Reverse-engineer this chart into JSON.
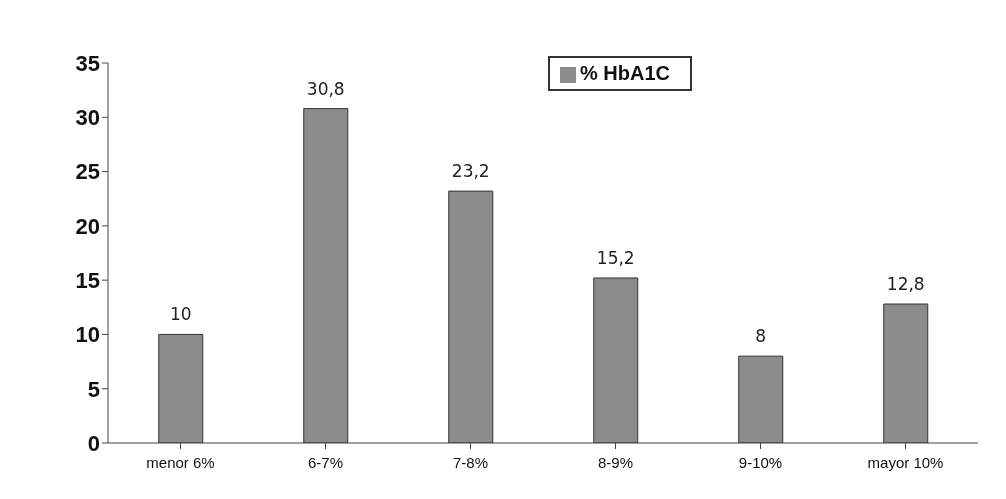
{
  "chart_data": {
    "type": "bar",
    "categories": [
      "menor 6%",
      "6-7%",
      "7-8%",
      "8-9%",
      "9-10%",
      "mayor 10%"
    ],
    "series": [
      {
        "name": "% HbA1C",
        "color": "#8c8c8c",
        "values": [
          10,
          30.8,
          23.2,
          15.2,
          8,
          12.8
        ],
        "value_labels": [
          "10",
          "30,8",
          "23,2",
          "15,2",
          "8",
          "12,8"
        ]
      }
    ],
    "ylim": [
      0,
      35
    ],
    "yticks": [
      0,
      5,
      10,
      15,
      20,
      25,
      30,
      35
    ],
    "grid": false,
    "legend": "top"
  }
}
